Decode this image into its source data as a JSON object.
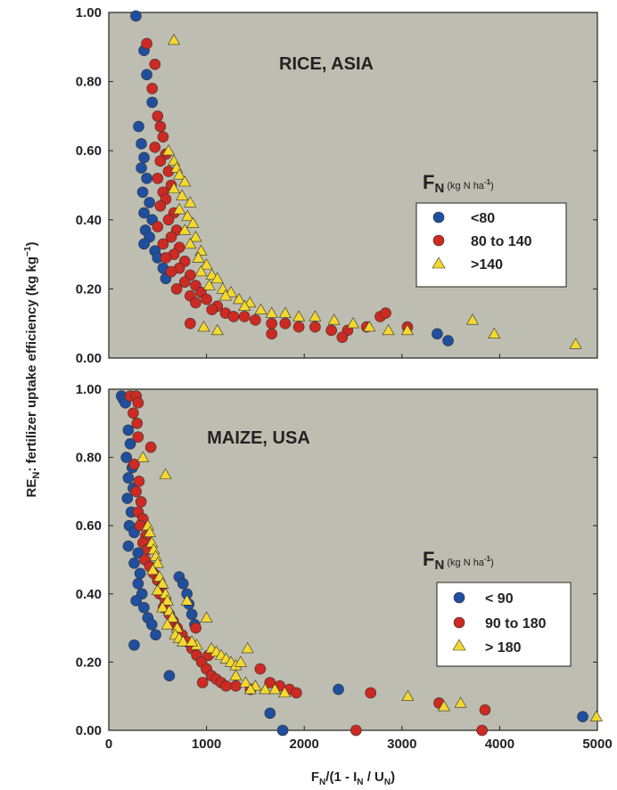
{
  "ylabel": {
    "main": "RE",
    "sub": "N",
    "rest": ": fertilizer uptake efficiency (kg kg",
    "sup": "−1",
    "close": ")"
  },
  "xlabel": {
    "f": "F",
    "fsub": "N",
    "mid": "/(1 - I",
    "isub": "N",
    "sep": " / U",
    "usub": "N",
    "close": ")"
  },
  "colors": {
    "blue": "#1f4f9e",
    "red": "#cc2a22",
    "yellow": "#f4d82e",
    "panel": "#bebdb1"
  },
  "chart_data": [
    {
      "type": "scatter",
      "title": "RICE, ASIA",
      "xlim": [
        0,
        1800
      ],
      "ylim": [
        0,
        1.0
      ],
      "y_ticks": [
        "0.00",
        "0.20",
        "0.40",
        "0.60",
        "0.80",
        "1.00"
      ],
      "legend": {
        "title_main": "F",
        "title_sub": "N",
        "title_unit": " (kg N ha",
        "title_sup": "-1",
        "title_close": ")",
        "entries": [
          "<80",
          "80 to 140",
          ">140"
        ]
      },
      "series": [
        {
          "name": "<80",
          "marker": "circle",
          "color": "#1f4f9e",
          "points": [
            [
              100,
              0.99
            ],
            [
              130,
              0.89
            ],
            [
              140,
              0.82
            ],
            [
              160,
              0.74
            ],
            [
              110,
              0.67
            ],
            [
              120,
              0.62
            ],
            [
              130,
              0.58
            ],
            [
              120,
              0.55
            ],
            [
              140,
              0.52
            ],
            [
              125,
              0.48
            ],
            [
              150,
              0.45
            ],
            [
              130,
              0.42
            ],
            [
              160,
              0.4
            ],
            [
              135,
              0.37
            ],
            [
              150,
              0.35
            ],
            [
              130,
              0.33
            ],
            [
              170,
              0.31
            ],
            [
              180,
              0.29
            ],
            [
              200,
              0.26
            ],
            [
              210,
              0.23
            ],
            [
              1210,
              0.07
            ],
            [
              1250,
              0.05
            ]
          ]
        },
        {
          "name": "80 to 140",
          "marker": "circle",
          "color": "#cc2a22",
          "points": [
            [
              140,
              0.91
            ],
            [
              170,
              0.85
            ],
            [
              160,
              0.78
            ],
            [
              180,
              0.7
            ],
            [
              190,
              0.67
            ],
            [
              200,
              0.64
            ],
            [
              170,
              0.61
            ],
            [
              210,
              0.59
            ],
            [
              190,
              0.57
            ],
            [
              220,
              0.54
            ],
            [
              180,
              0.52
            ],
            [
              230,
              0.5
            ],
            [
              200,
              0.48
            ],
            [
              210,
              0.46
            ],
            [
              190,
              0.44
            ],
            [
              240,
              0.42
            ],
            [
              220,
              0.4
            ],
            [
              180,
              0.38
            ],
            [
              250,
              0.37
            ],
            [
              230,
              0.35
            ],
            [
              200,
              0.33
            ],
            [
              260,
              0.32
            ],
            [
              240,
              0.3
            ],
            [
              210,
              0.29
            ],
            [
              280,
              0.28
            ],
            [
              260,
              0.26
            ],
            [
              230,
              0.25
            ],
            [
              300,
              0.24
            ],
            [
              280,
              0.22
            ],
            [
              320,
              0.21
            ],
            [
              250,
              0.2
            ],
            [
              340,
              0.19
            ],
            [
              300,
              0.18
            ],
            [
              360,
              0.17
            ],
            [
              320,
              0.16
            ],
            [
              400,
              0.15
            ],
            [
              380,
              0.14
            ],
            [
              430,
              0.13
            ],
            [
              460,
              0.12
            ],
            [
              500,
              0.12
            ],
            [
              540,
              0.11
            ],
            [
              600,
              0.1
            ],
            [
              650,
              0.1
            ],
            [
              700,
              0.09
            ],
            [
              760,
              0.09
            ],
            [
              820,
              0.08
            ],
            [
              880,
              0.08
            ],
            [
              950,
              0.09
            ],
            [
              1000,
              0.12
            ],
            [
              1020,
              0.13
            ],
            [
              1100,
              0.09
            ],
            [
              860,
              0.06
            ],
            [
              600,
              0.07
            ],
            [
              300,
              0.1
            ]
          ]
        },
        {
          "name": ">140",
          "marker": "triangle",
          "color": "#f4d82e",
          "points": [
            [
              240,
              0.92
            ],
            [
              220,
              0.6
            ],
            [
              240,
              0.57
            ],
            [
              250,
              0.55
            ],
            [
              260,
              0.53
            ],
            [
              280,
              0.51
            ],
            [
              240,
              0.49
            ],
            [
              270,
              0.47
            ],
            [
              300,
              0.45
            ],
            [
              260,
              0.43
            ],
            [
              290,
              0.41
            ],
            [
              310,
              0.39
            ],
            [
              280,
              0.37
            ],
            [
              320,
              0.35
            ],
            [
              300,
              0.33
            ],
            [
              340,
              0.31
            ],
            [
              330,
              0.29
            ],
            [
              360,
              0.27
            ],
            [
              340,
              0.25
            ],
            [
              380,
              0.24
            ],
            [
              400,
              0.23
            ],
            [
              370,
              0.21
            ],
            [
              420,
              0.2
            ],
            [
              450,
              0.19
            ],
            [
              430,
              0.18
            ],
            [
              480,
              0.17
            ],
            [
              520,
              0.16
            ],
            [
              500,
              0.15
            ],
            [
              560,
              0.14
            ],
            [
              600,
              0.13
            ],
            [
              650,
              0.13
            ],
            [
              700,
              0.12
            ],
            [
              760,
              0.12
            ],
            [
              830,
              0.11
            ],
            [
              900,
              0.1
            ],
            [
              960,
              0.09
            ],
            [
              1030,
              0.08
            ],
            [
              1100,
              0.08
            ],
            [
              1340,
              0.11
            ],
            [
              1420,
              0.07
            ],
            [
              1720,
              0.04
            ],
            [
              350,
              0.09
            ],
            [
              400,
              0.08
            ]
          ]
        }
      ]
    },
    {
      "type": "scatter",
      "title": "MAIZE, USA",
      "xlim": [
        0,
        5000
      ],
      "ylim": [
        0,
        1.0
      ],
      "x_ticks": [
        "0",
        "1000",
        "2000",
        "3000",
        "4000",
        "5000"
      ],
      "y_ticks": [
        "0.00",
        "0.20",
        "0.40",
        "0.60",
        "0.80",
        "1.00"
      ],
      "legend": {
        "title_main": "F",
        "title_sub": "N",
        "title_unit": " (kg N ha",
        "title_sup": "-1",
        "title_close": ")",
        "entries": [
          "< 90",
          "90 to 180",
          "> 180"
        ]
      },
      "series": [
        {
          "name": "< 90",
          "marker": "circle",
          "color": "#1f4f9e",
          "points": [
            [
              130,
              0.98
            ],
            [
              150,
              0.97
            ],
            [
              170,
              0.96
            ],
            [
              200,
              0.88
            ],
            [
              220,
              0.84
            ],
            [
              180,
              0.8
            ],
            [
              240,
              0.77
            ],
            [
              200,
              0.74
            ],
            [
              250,
              0.71
            ],
            [
              190,
              0.68
            ],
            [
              230,
              0.64
            ],
            [
              210,
              0.6
            ],
            [
              260,
              0.58
            ],
            [
              200,
              0.54
            ],
            [
              300,
              0.52
            ],
            [
              260,
              0.49
            ],
            [
              320,
              0.46
            ],
            [
              300,
              0.43
            ],
            [
              340,
              0.4
            ],
            [
              280,
              0.38
            ],
            [
              360,
              0.36
            ],
            [
              400,
              0.33
            ],
            [
              440,
              0.31
            ],
            [
              480,
              0.28
            ],
            [
              260,
              0.25
            ],
            [
              720,
              0.45
            ],
            [
              760,
              0.43
            ],
            [
              800,
              0.4
            ],
            [
              820,
              0.37
            ],
            [
              850,
              0.34
            ],
            [
              880,
              0.31
            ],
            [
              1000,
              0.18
            ],
            [
              620,
              0.16
            ],
            [
              1650,
              0.05
            ],
            [
              1780,
              0.0
            ],
            [
              2350,
              0.12
            ],
            [
              4850,
              0.04
            ]
          ]
        },
        {
          "name": "90 to 180",
          "marker": "circle",
          "color": "#cc2a22",
          "points": [
            [
              220,
              0.98
            ],
            [
              280,
              0.98
            ],
            [
              300,
              0.96
            ],
            [
              250,
              0.93
            ],
            [
              290,
              0.9
            ],
            [
              300,
              0.86
            ],
            [
              260,
              0.78
            ],
            [
              310,
              0.73
            ],
            [
              280,
              0.7
            ],
            [
              330,
              0.67
            ],
            [
              300,
              0.64
            ],
            [
              350,
              0.62
            ],
            [
              320,
              0.6
            ],
            [
              380,
              0.57
            ],
            [
              350,
              0.55
            ],
            [
              400,
              0.53
            ],
            [
              370,
              0.5
            ],
            [
              430,
              0.83
            ],
            [
              420,
              0.48
            ],
            [
              460,
              0.46
            ],
            [
              500,
              0.44
            ],
            [
              540,
              0.42
            ],
            [
              520,
              0.4
            ],
            [
              580,
              0.38
            ],
            [
              560,
              0.36
            ],
            [
              620,
              0.34
            ],
            [
              660,
              0.32
            ],
            [
              700,
              0.3
            ],
            [
              750,
              0.28
            ],
            [
              800,
              0.26
            ],
            [
              850,
              0.24
            ],
            [
              900,
              0.22
            ],
            [
              950,
              0.2
            ],
            [
              1000,
              0.18
            ],
            [
              1050,
              0.16
            ],
            [
              1100,
              0.15
            ],
            [
              1150,
              0.14
            ],
            [
              960,
              0.14
            ],
            [
              1200,
              0.13
            ],
            [
              1300,
              0.13
            ],
            [
              1450,
              0.12
            ],
            [
              1550,
              0.18
            ],
            [
              1650,
              0.14
            ],
            [
              1750,
              0.13
            ],
            [
              1850,
              0.12
            ],
            [
              1920,
              0.11
            ],
            [
              2680,
              0.11
            ],
            [
              2530,
              0.0
            ],
            [
              3380,
              0.08
            ],
            [
              3850,
              0.06
            ],
            [
              3820,
              0.0
            ],
            [
              890,
              0.3
            ],
            [
              1020,
              0.22
            ]
          ]
        },
        {
          "name": "> 180",
          "marker": "triangle",
          "color": "#f4d82e",
          "points": [
            [
              350,
              0.8
            ],
            [
              580,
              0.75
            ],
            [
              400,
              0.6
            ],
            [
              420,
              0.58
            ],
            [
              440,
              0.55
            ],
            [
              460,
              0.53
            ],
            [
              480,
              0.51
            ],
            [
              500,
              0.49
            ],
            [
              450,
              0.47
            ],
            [
              520,
              0.45
            ],
            [
              550,
              0.43
            ],
            [
              500,
              0.41
            ],
            [
              580,
              0.4
            ],
            [
              600,
              0.38
            ],
            [
              550,
              0.36
            ],
            [
              620,
              0.35
            ],
            [
              650,
              0.33
            ],
            [
              600,
              0.31
            ],
            [
              700,
              0.3
            ],
            [
              680,
              0.28
            ],
            [
              720,
              0.27
            ],
            [
              760,
              0.26
            ],
            [
              900,
              0.25
            ],
            [
              800,
              0.38
            ],
            [
              1000,
              0.33
            ],
            [
              850,
              0.26
            ],
            [
              1050,
              0.24
            ],
            [
              1100,
              0.23
            ],
            [
              1150,
              0.22
            ],
            [
              1200,
              0.21
            ],
            [
              1250,
              0.2
            ],
            [
              1300,
              0.19
            ],
            [
              1350,
              0.2
            ],
            [
              1420,
              0.24
            ],
            [
              1300,
              0.16
            ],
            [
              1400,
              0.14
            ],
            [
              1500,
              0.13
            ],
            [
              1600,
              0.12
            ],
            [
              1700,
              0.12
            ],
            [
              1800,
              0.11
            ],
            [
              1450,
              0.12
            ],
            [
              3060,
              0.1
            ],
            [
              3430,
              0.07
            ],
            [
              3600,
              0.08
            ],
            [
              4990,
              0.04
            ]
          ]
        }
      ]
    }
  ]
}
